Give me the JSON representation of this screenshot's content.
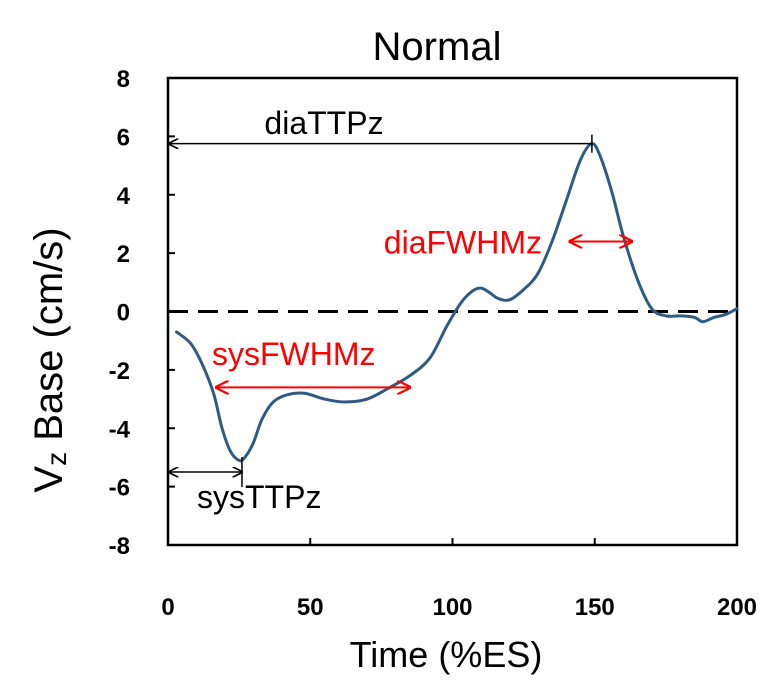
{
  "chart_data": {
    "type": "line",
    "title": "Normal",
    "xlabel": "Time (%ES)",
    "ylabel_main": "V",
    "ylabel_sub": "z",
    "ylabel_rest": " Base  (cm/s)",
    "xlim": [
      0,
      200
    ],
    "ylim": [
      -8,
      8
    ],
    "xticks": [
      0,
      50,
      100,
      150,
      200
    ],
    "yticks": [
      -8,
      -6,
      -4,
      -2,
      0,
      2,
      4,
      6,
      8
    ],
    "grid": false,
    "reference_line": {
      "y": 0,
      "style": "dashed"
    },
    "series": [
      {
        "name": "Vz Base",
        "color": "#2F5A84",
        "x": [
          3,
          8,
          12,
          16,
          19,
          22,
          25,
          27,
          30,
          33,
          37,
          42,
          48,
          55,
          62,
          70,
          78,
          85,
          92,
          98,
          103,
          107,
          110,
          113,
          116,
          120,
          125,
          130,
          135,
          140,
          145,
          149,
          152,
          156,
          160,
          165,
          170,
          175,
          180,
          185,
          188,
          192,
          196,
          200
        ],
        "y": [
          -0.7,
          -1.1,
          -1.8,
          -2.8,
          -4.0,
          -4.8,
          -5.1,
          -5.0,
          -4.5,
          -3.7,
          -3.1,
          -2.85,
          -2.8,
          -3.0,
          -3.1,
          -3.0,
          -2.6,
          -2.2,
          -1.6,
          -0.5,
          0.3,
          0.7,
          0.8,
          0.65,
          0.45,
          0.4,
          0.75,
          1.3,
          2.4,
          3.8,
          5.2,
          5.75,
          5.3,
          4.1,
          2.6,
          1.1,
          0.1,
          -0.15,
          -0.15,
          -0.2,
          -0.35,
          -0.2,
          -0.1,
          0.1
        ]
      }
    ],
    "annotations": [
      {
        "label": "diaTTPz",
        "color": "#000000",
        "x_start": 0,
        "x_end": 149,
        "y": 5.75,
        "peak_x": 149
      },
      {
        "label": "diaFWHMz",
        "color": "#FF0000",
        "x_start": 135,
        "x_end": 163,
        "y": 2.4
      },
      {
        "label": "sysFWHMz",
        "color": "#FF0000",
        "x_start": 17,
        "x_end": 85,
        "y": -2.6
      },
      {
        "label": "sysTTPz",
        "color": "#000000",
        "x_start": 0,
        "x_end": 26,
        "y": -5.5,
        "peak_x": 26
      }
    ]
  }
}
